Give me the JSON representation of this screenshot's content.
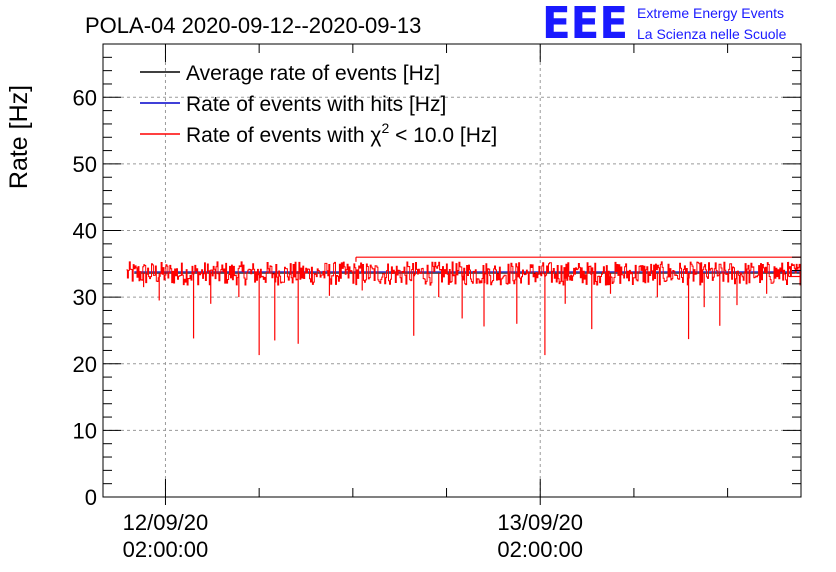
{
  "chart_data": {
    "type": "line",
    "title": "POLA-04 2020-09-12--2020-09-13",
    "xlabel": "",
    "ylabel": "Rate [Hz]",
    "ylim": [
      0,
      68
    ],
    "y_ticks": [
      0,
      10,
      20,
      30,
      40,
      50,
      60
    ],
    "y_tick_labels": [
      "0",
      "10",
      "20",
      "30",
      "40",
      "50",
      "60"
    ],
    "x_unit": "hours since 2020-09-12 00:00",
    "xlim": [
      -2.0,
      42.7
    ],
    "x_major_ticks": [
      {
        "x": 2,
        "date": "12/09/20",
        "time": "02:00:00"
      },
      {
        "x": 26,
        "date": "13/09/20",
        "time": "02:00:00"
      }
    ],
    "x_minor_ticks": [
      8,
      14,
      20,
      32,
      38
    ],
    "grid": true,
    "legend_position": "top-left",
    "series": [
      {
        "name": "Average rate of events [Hz]",
        "color": "#000000",
        "level": 33.6,
        "x_start": 0,
        "x_end": 43.0,
        "step": {
          "x": 0.7,
          "value": 33.2
        }
      },
      {
        "name": "Rate of events with hits [Hz]",
        "color": "#0000cc",
        "level": 33.8,
        "x_start": 0,
        "x_end": 43.0
      },
      {
        "name": "Rate of events with χ² < 10.0 [Hz]",
        "color": "#ff0000",
        "noisy": {
          "x_start": -0.5,
          "x_end": 42.7,
          "mean": 33.6,
          "band": [
            31.8,
            35.3
          ]
        },
        "dips": [
          {
            "x": 0.6,
            "min": 31.5
          },
          {
            "x": 1.6,
            "min": 29.5
          },
          {
            "x": 3.8,
            "min": 23.8
          },
          {
            "x": 4.9,
            "min": 29.0
          },
          {
            "x": 6.7,
            "min": 30.0
          },
          {
            "x": 8.0,
            "min": 21.3
          },
          {
            "x": 9.0,
            "min": 23.5
          },
          {
            "x": 10.5,
            "min": 23.0
          },
          {
            "x": 12.5,
            "min": 30.2
          },
          {
            "x": 14.6,
            "min": 31.0
          },
          {
            "x": 17.9,
            "min": 24.2
          },
          {
            "x": 19.5,
            "min": 30.0
          },
          {
            "x": 21.0,
            "min": 26.8
          },
          {
            "x": 22.4,
            "min": 25.6
          },
          {
            "x": 24.5,
            "min": 26.0
          },
          {
            "x": 26.3,
            "min": 21.3
          },
          {
            "x": 27.6,
            "min": 29.0
          },
          {
            "x": 29.3,
            "min": 25.2
          },
          {
            "x": 30.5,
            "min": 30.5
          },
          {
            "x": 33.5,
            "min": 30.0
          },
          {
            "x": 35.5,
            "min": 23.7
          },
          {
            "x": 36.5,
            "min": 28.5
          },
          {
            "x": 37.5,
            "min": 25.7
          },
          {
            "x": 38.6,
            "min": 28.8
          },
          {
            "x": 40.5,
            "min": 30.5
          }
        ],
        "overlay": [
          {
            "x_start": 14.2,
            "x_end": 43.0,
            "value": 36.0
          },
          {
            "x_start": 41.9,
            "x_end": 43.0,
            "value": 33.1
          }
        ]
      }
    ]
  },
  "legend": {
    "items": [
      {
        "prefix": "Average rate of events [Hz]",
        "sup": "",
        "suffix": ""
      },
      {
        "prefix": "Rate of events with hits [Hz]",
        "sup": "",
        "suffix": ""
      },
      {
        "prefix": "Rate of events with χ",
        "sup": "2",
        "suffix": " < 10.0 [Hz]"
      }
    ]
  },
  "logo": {
    "mark": "EEE",
    "line1": "Extreme Energy Events",
    "line2": "La Scienza nelle Scuole"
  }
}
